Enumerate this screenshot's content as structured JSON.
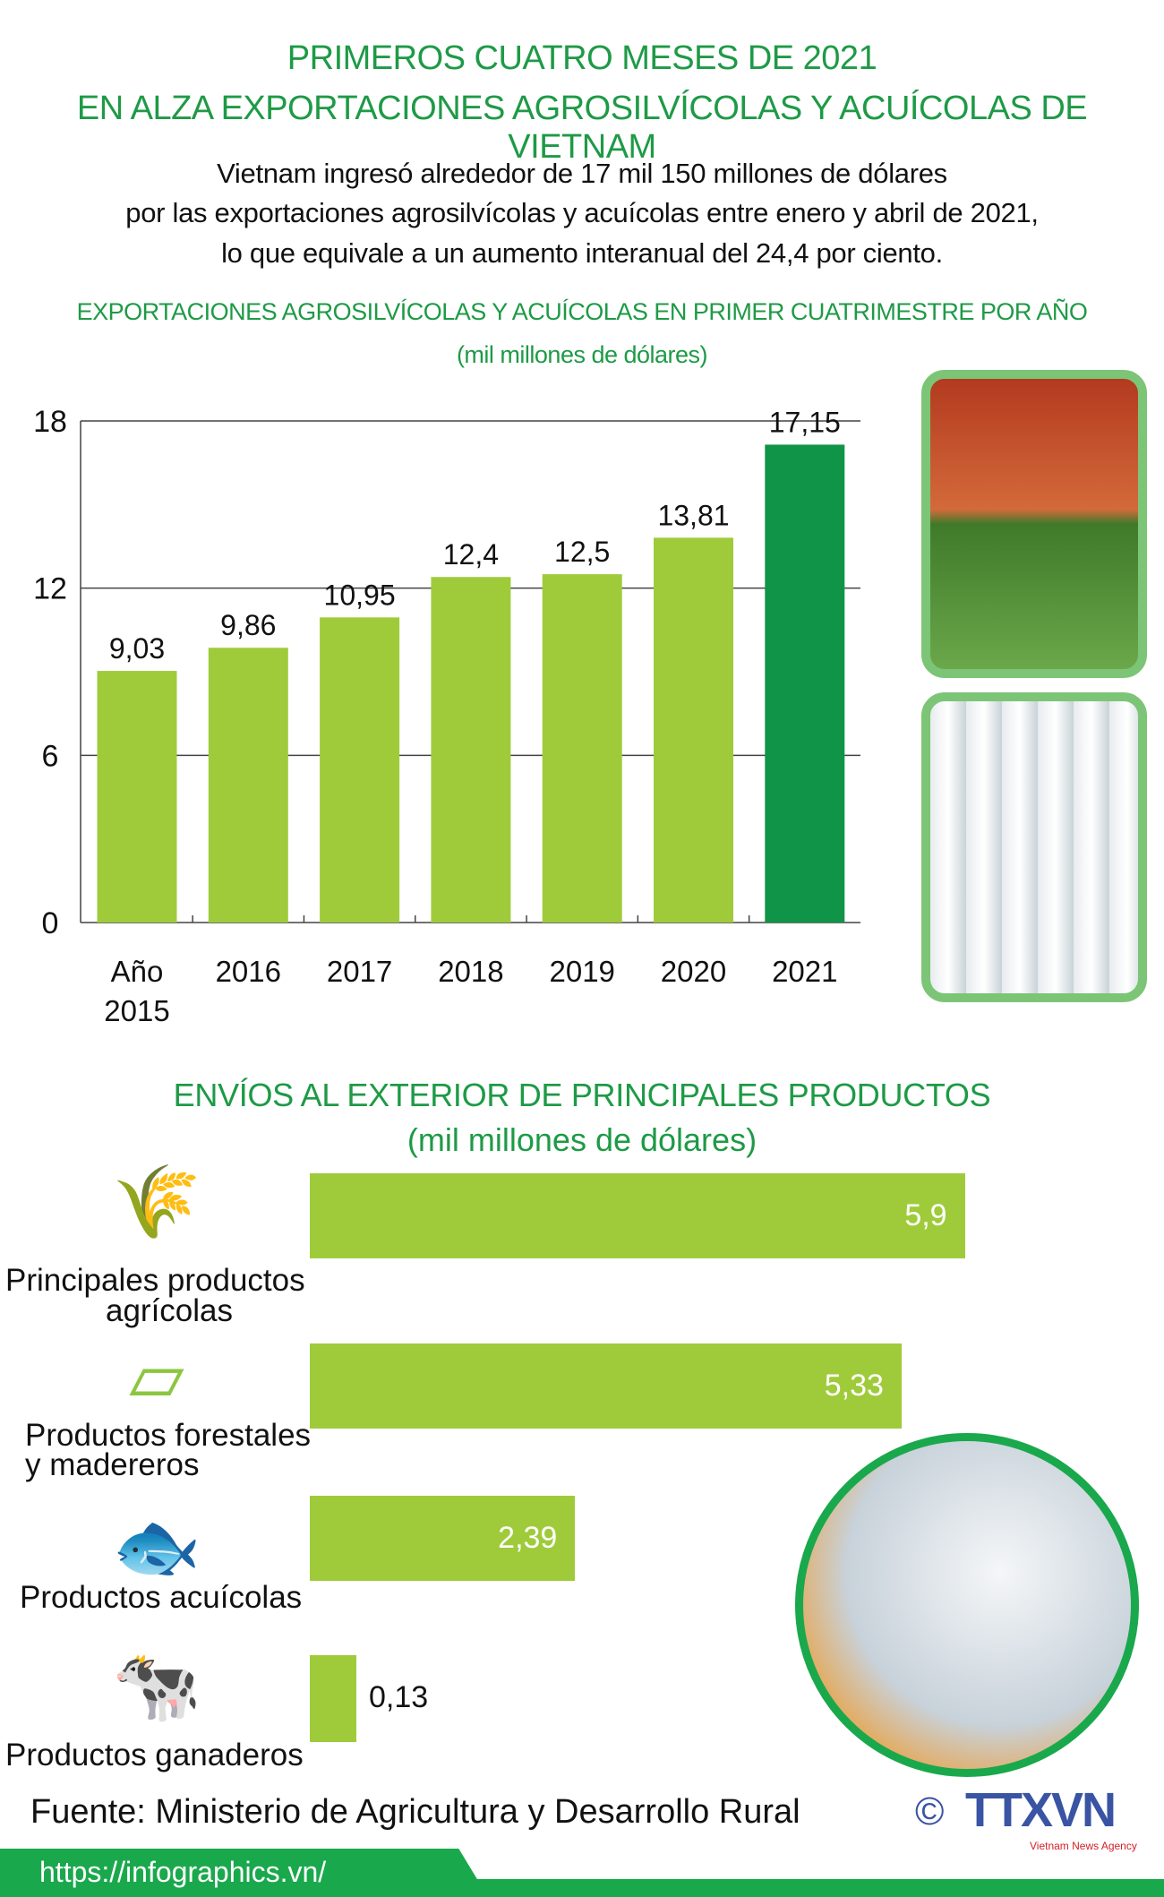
{
  "header": {
    "title_line1": "PRIMEROS CUATRO MESES DE 2021",
    "title_line2": "EN ALZA EXPORTACIONES AGROSILVÍCOLAS Y ACUÍCOLAS DE VIETNAM",
    "intro": [
      "Vietnam ingresó alrededor de 17 mil 150 millones de dólares",
      "por las exportaciones agrosilvícolas y acuícolas entre enero y abril de 2021,",
      "lo que equivale a un aumento interanual del 24,4 por ciento."
    ]
  },
  "chart_data": [
    {
      "type": "bar",
      "title": "EXPORTACIONES AGROSILVÍCOLAS Y ACUÍCOLAS EN PRIMER CUATRIMESTRE POR AÑO",
      "subtitle": "(mil millones de dólares)",
      "categories": [
        "Año 2015",
        "2016",
        "2017",
        "2018",
        "2019",
        "2020",
        "2021"
      ],
      "category_lines": [
        [
          "Año",
          "2015"
        ],
        [
          "2016"
        ],
        [
          "2017"
        ],
        [
          "2018"
        ],
        [
          "2019"
        ],
        [
          "2020"
        ],
        [
          "2021"
        ]
      ],
      "values": [
        9.03,
        9.86,
        10.95,
        12.4,
        12.5,
        13.81,
        17.15
      ],
      "value_labels": [
        "9,03",
        "9,86",
        "10,95",
        "12,4",
        "12,5",
        "13,81",
        "17,15"
      ],
      "ylim": [
        0,
        18
      ],
      "yticks": [
        "0",
        "6",
        "12",
        "18"
      ],
      "ytick_values": [
        0,
        6,
        12,
        18
      ],
      "grid": true,
      "colors": {
        "default": "#9fcb3b",
        "highlight": "#109447"
      }
    },
    {
      "type": "bar",
      "orientation": "horizontal",
      "title": "ENVÍOS AL EXTERIOR DE PRINCIPALES PRODUCTOS",
      "subtitle": "(mil millones de dólares)",
      "categories": [
        "Principales productos agrícolas",
        "Productos forestales y madereros",
        "Productos acuícolas",
        "Productos ganaderos"
      ],
      "category_lines": [
        [
          "Principales productos",
          "agrícolas"
        ],
        [
          "Productos forestales",
          "y madereros"
        ],
        [
          "Productos acuícolas"
        ],
        [
          "Productos ganaderos"
        ]
      ],
      "icons": [
        "wheat-icon",
        "wood-plank-icon",
        "fish-icon",
        "cow-icon"
      ],
      "values": [
        5.9,
        5.33,
        2.39,
        0.13
      ],
      "value_labels": [
        "5,9",
        "5,33",
        "2,39",
        "0,13"
      ],
      "color": "#9fcb3b"
    }
  ],
  "footer": {
    "source": "Fuente: Ministerio de Agricultura y Desarrollo Rural",
    "url": "https://infographics.vn/",
    "logo_text": "TTXVN",
    "logo_sub": "Vietnam News Agency",
    "copyright": "©"
  }
}
